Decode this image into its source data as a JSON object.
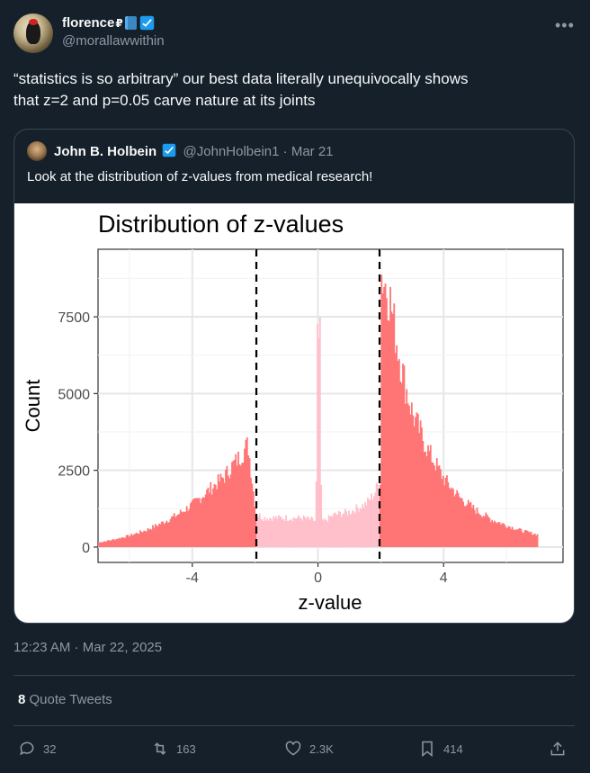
{
  "author": {
    "display_name": "florence",
    "pound_emoji": "₽",
    "handle": "@morallawwithin"
  },
  "tweet": {
    "text_line1": "“statistics is so arbitrary” our best data literally unequivocally shows",
    "text_line2": "that z=2 and p=0.05 carve nature at its joints",
    "timestamp": "12:23 AM · Mar 22, 2025"
  },
  "quoted_tweet": {
    "display_name": "John B. Holbein",
    "handle": "@JohnHolbein1",
    "separator": " · ",
    "date": "Mar 21",
    "text": "Look at the distribution of z-values from medical research!"
  },
  "chart_data": {
    "type": "bar",
    "title": "Distribution of z-values",
    "xlabel": "z-value",
    "ylabel": "Count",
    "xlim": [
      -7,
      7.8
    ],
    "ylim": [
      -500,
      9700
    ],
    "x_ticks": [
      -4,
      0,
      4
    ],
    "y_ticks": [
      0,
      2500,
      5000,
      7500
    ],
    "x_tick_labels": [
      "-4",
      "0",
      "4"
    ],
    "y_tick_labels": [
      "0",
      "2500",
      "5000",
      "7500"
    ],
    "grid": true,
    "vlines": [
      -1.96,
      1.96
    ],
    "colors": {
      "significant": "#ff7474",
      "nonsignificant": "#ffc0cb"
    },
    "bins_x": [
      -7.0,
      -6.5,
      -6.0,
      -5.5,
      -5.0,
      -4.5,
      -4.0,
      -3.5,
      -3.0,
      -2.75,
      -2.5,
      -2.25,
      -2.0,
      -1.75,
      -1.5,
      -1.0,
      -0.5,
      -0.1,
      0.0,
      0.1,
      0.5,
      1.0,
      1.5,
      1.75,
      1.96,
      2.0,
      2.25,
      2.5,
      2.75,
      3.0,
      3.5,
      4.0,
      4.5,
      5.0,
      5.5,
      6.0,
      6.5,
      7.0
    ],
    "bins_y": [
      150,
      250,
      380,
      550,
      780,
      1050,
      1400,
      1850,
      2300,
      2650,
      2950,
      3350,
      1100,
      950,
      950,
      950,
      950,
      850,
      6800,
      800,
      1050,
      1150,
      1400,
      1700,
      2200,
      8900,
      8200,
      6600,
      5300,
      4300,
      3100,
      2200,
      1600,
      1200,
      900,
      700,
      520,
      400
    ]
  },
  "stats": {
    "quote_count": "8",
    "quote_label": "Quote Tweets",
    "replies": "32",
    "retweets": "163",
    "likes": "2.3K",
    "bookmarks": "414"
  }
}
